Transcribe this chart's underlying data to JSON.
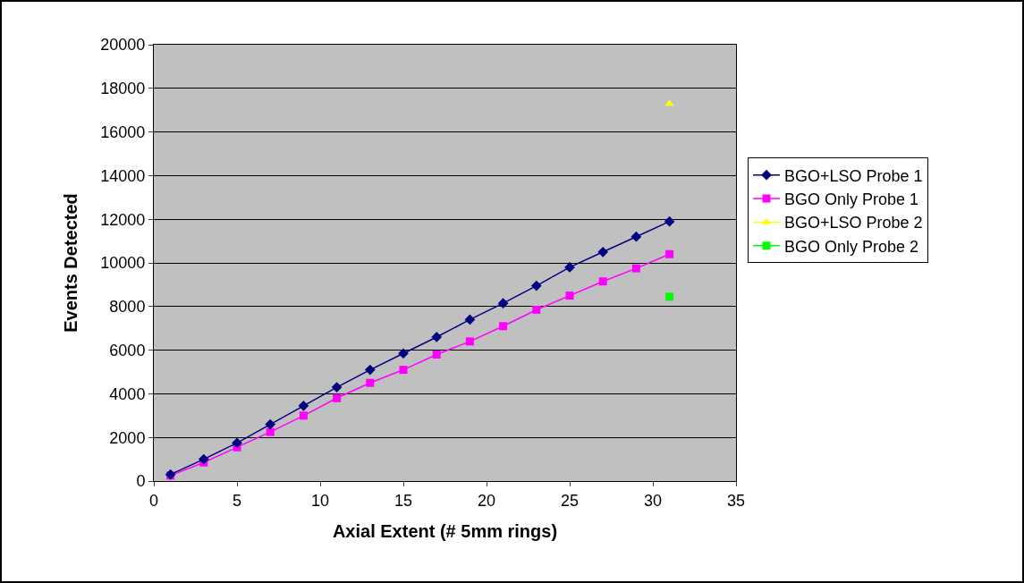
{
  "chart_data": {
    "type": "line",
    "xlabel": "Axial Extent (# 5mm rings)",
    "ylabel": "Events Detected",
    "x": [
      1,
      3,
      5,
      7,
      9,
      11,
      13,
      15,
      17,
      19,
      21,
      23,
      25,
      27,
      29,
      31
    ],
    "series": [
      {
        "name": "BGO+LSO Probe 1",
        "color": "#000080",
        "marker": "diamond",
        "values": [
          300,
          1000,
          1750,
          2600,
          3450,
          4300,
          5100,
          5850,
          6600,
          7400,
          8150,
          8950,
          9800,
          10500,
          11200,
          11900
        ]
      },
      {
        "name": "BGO Only Probe 1",
        "color": "#ff00ff",
        "marker": "square",
        "values": [
          250,
          850,
          1550,
          2250,
          3000,
          3800,
          4500,
          5100,
          5800,
          6400,
          7100,
          7850,
          8500,
          9150,
          9750,
          10400
        ]
      },
      {
        "name": "BGO+LSO Probe 2",
        "color": "#ffff00",
        "marker": "triangle",
        "x": [
          31
        ],
        "values": [
          17300
        ]
      },
      {
        "name": "BGO Only Probe 2",
        "color": "#00ff00",
        "marker": "square",
        "x": [
          31
        ],
        "values": [
          8450
        ]
      }
    ],
    "xlim": [
      0,
      35
    ],
    "xticks": [
      0,
      5,
      10,
      15,
      20,
      25,
      30,
      35
    ],
    "ylim": [
      0,
      20000
    ],
    "yticks": [
      0,
      2000,
      4000,
      6000,
      8000,
      10000,
      12000,
      14000,
      16000,
      18000,
      20000
    ],
    "grid": "y",
    "legend": "right"
  }
}
